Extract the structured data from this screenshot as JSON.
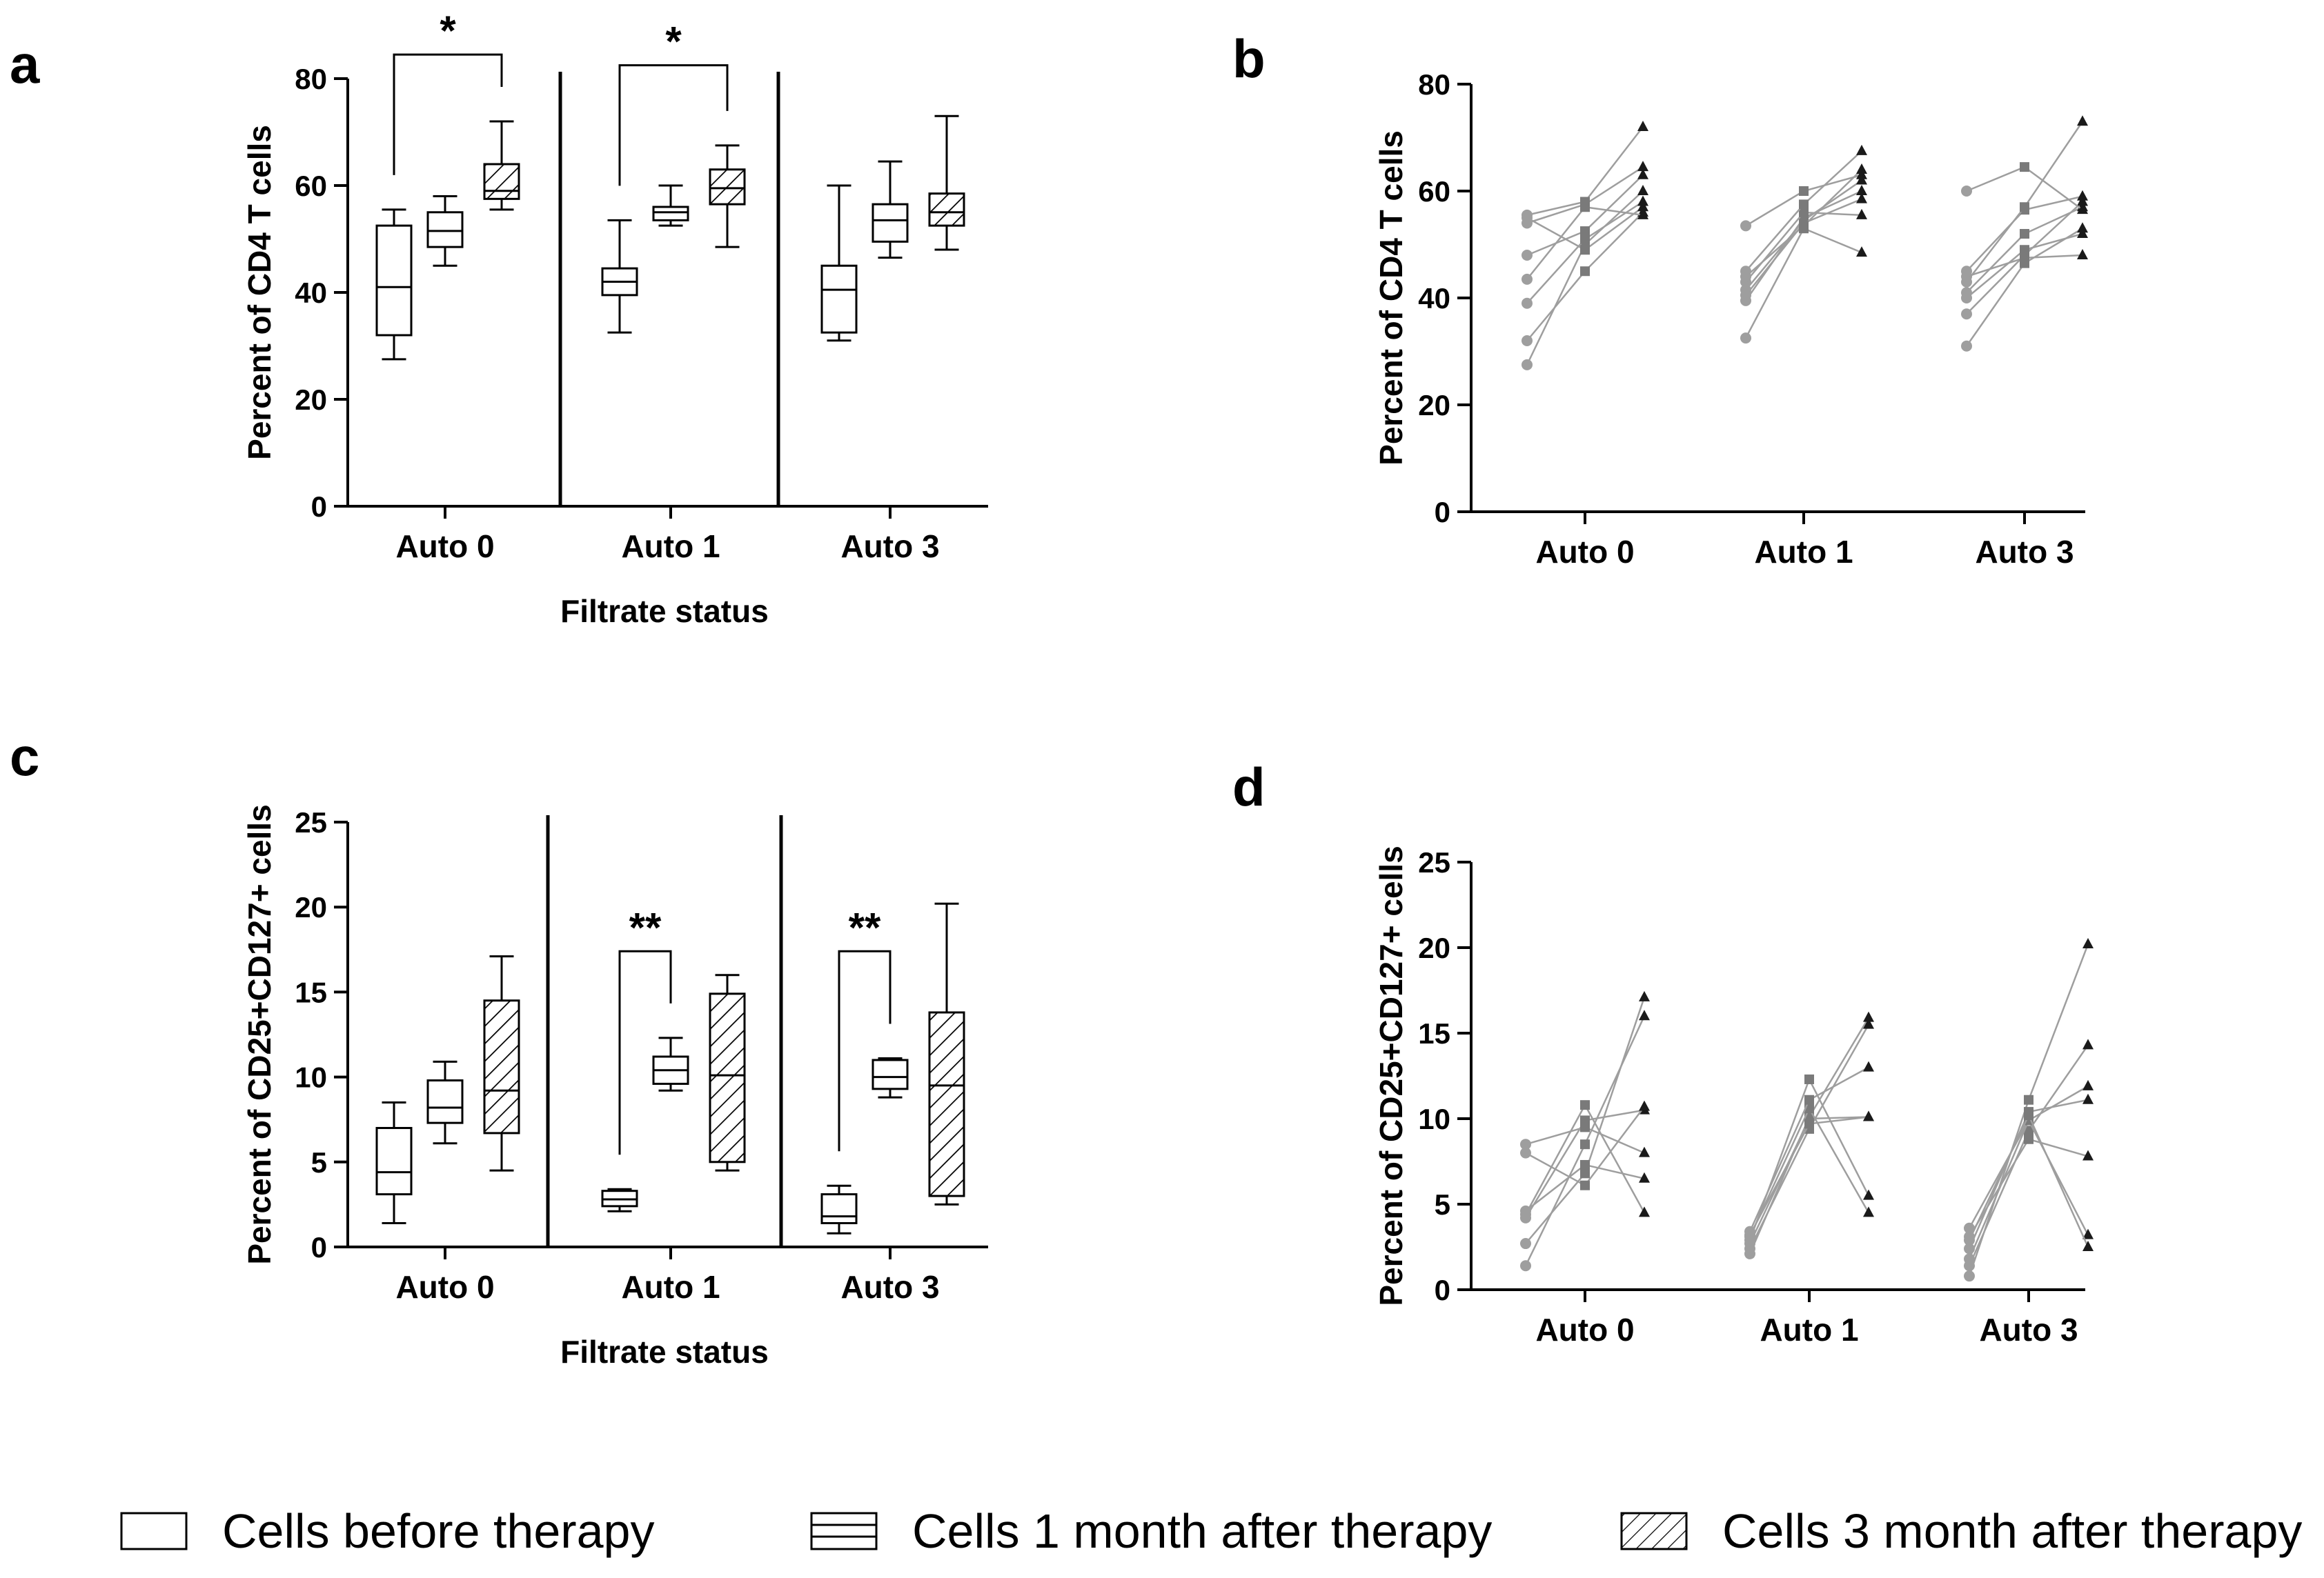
{
  "figure": {
    "panel_letters": [
      "a",
      "b",
      "c",
      "d"
    ]
  },
  "legend": {
    "items": [
      {
        "label": "Cells before therapy",
        "pattern": "blank"
      },
      {
        "label": "Cells 1 month after therapy",
        "pattern": "horizontal"
      },
      {
        "label": "Cells 3 month after therapy",
        "pattern": "hatched"
      }
    ]
  },
  "colors": {
    "axis": "#000000",
    "line": "#9e9e9e",
    "dot": "#9e9e9e",
    "square": "#7a7a7a",
    "triangle": "#1a1a1a"
  },
  "chart_data": [
    {
      "panel": "a",
      "type": "box",
      "ylabel": "Percent of CD4 T cells",
      "xlabel": "Filtrate status",
      "ylim": [
        0,
        80
      ],
      "yticks": [
        0,
        20,
        40,
        60,
        80
      ],
      "categories": [
        "Auto 0",
        "Auto 1",
        "Auto 3"
      ],
      "series_names": [
        "Cells before therapy",
        "Cells 1 month after therapy",
        "Cells 3 month after therapy"
      ],
      "boxes": [
        [
          {
            "min": 27.5,
            "q1": 32,
            "median": 41,
            "q3": 52.5,
            "max": 55.5
          },
          {
            "min": 45,
            "q1": 48.5,
            "median": 51.5,
            "q3": 55,
            "max": 58
          },
          {
            "min": 55.5,
            "q1": 57.5,
            "median": 59,
            "q3": 64,
            "max": 72
          }
        ],
        [
          {
            "min": 32.5,
            "q1": 39.5,
            "median": 42,
            "q3": 44.5,
            "max": 53.5
          },
          {
            "min": 52.5,
            "q1": 53.5,
            "median": 55,
            "q3": 56,
            "max": 60
          },
          {
            "min": 48.5,
            "q1": 56.5,
            "median": 59.5,
            "q3": 63,
            "max": 67.5
          }
        ],
        [
          {
            "min": 31,
            "q1": 32.5,
            "median": 40.5,
            "q3": 45,
            "max": 60
          },
          {
            "min": 46.5,
            "q1": 49.5,
            "median": 53.5,
            "q3": 56.5,
            "max": 64.5
          },
          {
            "min": 48,
            "q1": 52.5,
            "median": 55,
            "q3": 58.5,
            "max": 73
          }
        ]
      ],
      "significance": [
        {
          "group": "Auto 0",
          "from": 0,
          "to": 2,
          "label": "*",
          "y": 84.5
        },
        {
          "group": "Auto 1",
          "from": 0,
          "to": 2,
          "label": "*",
          "y": 82.5
        }
      ]
    },
    {
      "panel": "b",
      "type": "paired-line",
      "ylabel": "Percent of CD4 T cells",
      "ylim": [
        0,
        80
      ],
      "yticks": [
        0,
        20,
        40,
        60,
        80
      ],
      "categories": [
        "Auto 0",
        "Auto 1",
        "Auto 3"
      ],
      "pairs": [
        [
          [
            27.5,
            50,
            60
          ],
          [
            32,
            45,
            56
          ],
          [
            39,
            51,
            58
          ],
          [
            43.5,
            57,
            55.5
          ],
          [
            48,
            52.5,
            63
          ],
          [
            54,
            57.5,
            64.5
          ],
          [
            55,
            49,
            57
          ],
          [
            55.5,
            58,
            72
          ]
        ],
        [
          [
            32.5,
            53,
            48.5
          ],
          [
            39.5,
            55,
            60
          ],
          [
            40.5,
            54,
            58.5
          ],
          [
            41.5,
            54.5,
            62
          ],
          [
            43,
            56,
            55.5
          ],
          [
            44,
            53.5,
            64
          ],
          [
            45,
            57.5,
            67.5
          ],
          [
            53.5,
            60,
            63
          ]
        ],
        [
          [
            31,
            46.5,
            53
          ],
          [
            37,
            48,
            58
          ],
          [
            40,
            49,
            52
          ],
          [
            41,
            52,
            57
          ],
          [
            44,
            47.5,
            48
          ],
          [
            45,
            56.5,
            59
          ],
          [
            60,
            64.5,
            56.5
          ],
          [
            43,
            57,
            73
          ]
        ]
      ]
    },
    {
      "panel": "c",
      "type": "box",
      "ylabel": "Percent of CD25+CD127+ cells",
      "xlabel": "Filtrate status",
      "ylim": [
        0,
        25
      ],
      "yticks": [
        0,
        5,
        10,
        15,
        20,
        25
      ],
      "categories": [
        "Auto 0",
        "Auto 1",
        "Auto 3"
      ],
      "series_names": [
        "Cells before therapy",
        "Cells 1 month after therapy",
        "Cells 3 month after therapy"
      ],
      "boxes": [
        [
          {
            "min": 1.4,
            "q1": 3.1,
            "median": 4.4,
            "q3": 7,
            "max": 8.5
          },
          {
            "min": 6.1,
            "q1": 7.3,
            "median": 8.2,
            "q3": 9.8,
            "max": 10.9
          },
          {
            "min": 4.5,
            "q1": 6.7,
            "median": 9.2,
            "q3": 14.5,
            "max": 17.1
          }
        ],
        [
          {
            "min": 2.1,
            "q1": 2.4,
            "median": 2.8,
            "q3": 3.3,
            "max": 3.4
          },
          {
            "min": 9.2,
            "q1": 9.6,
            "median": 10.4,
            "q3": 11.2,
            "max": 12.3
          },
          {
            "min": 4.5,
            "q1": 5,
            "median": 10.1,
            "q3": 14.9,
            "max": 16
          }
        ],
        [
          {
            "min": 0.8,
            "q1": 1.4,
            "median": 1.8,
            "q3": 3.1,
            "max": 3.6
          },
          {
            "min": 8.8,
            "q1": 9.3,
            "median": 10,
            "q3": 11,
            "max": 11.1
          },
          {
            "min": 2.5,
            "q1": 3,
            "median": 9.5,
            "q3": 13.8,
            "max": 20.2
          }
        ]
      ],
      "significance": [
        {
          "group": "Auto 1",
          "from": 0,
          "to": 1,
          "label": "**",
          "y": 17.4
        },
        {
          "group": "Auto 3",
          "from": 0,
          "to": 1,
          "label": "**",
          "y": 17.4
        }
      ]
    },
    {
      "panel": "d",
      "type": "paired-line",
      "ylabel": "Percent of CD25+CD127+ cells",
      "ylim": [
        0,
        25
      ],
      "yticks": [
        0,
        5,
        10,
        15,
        20,
        25
      ],
      "categories": [
        "Auto 0",
        "Auto 1",
        "Auto 3"
      ],
      "pairs": [
        [
          [
            1.4,
            8.5,
            16
          ],
          [
            2.7,
            6.8,
            17.1
          ],
          [
            4.2,
            9.9,
            10.5
          ],
          [
            4.4,
            10.8,
            4.5
          ],
          [
            4.6,
            7.3,
            6.5
          ],
          [
            8,
            6.1,
            10.7
          ],
          [
            8.5,
            9.5,
            8
          ]
        ],
        [
          [
            2.1,
            10.1,
            15.9
          ],
          [
            2.4,
            9.4,
            15.5
          ],
          [
            2.7,
            10,
            10.1
          ],
          [
            2.9,
            12.3,
            5.5
          ],
          [
            3.1,
            10.6,
            4.5
          ],
          [
            3.4,
            11.1,
            13
          ],
          [
            3.2,
            9.7,
            10.1
          ]
        ],
        [
          [
            0.8,
            11.1,
            20.2
          ],
          [
            1.4,
            9.3,
            14.3
          ],
          [
            1.8,
            9.9,
            11.9
          ],
          [
            2.4,
            10.4,
            11.1
          ],
          [
            3.1,
            8.8,
            7.8
          ],
          [
            3.6,
            9.9,
            3.2
          ],
          [
            2.9,
            10.2,
            2.5
          ]
        ]
      ]
    }
  ]
}
